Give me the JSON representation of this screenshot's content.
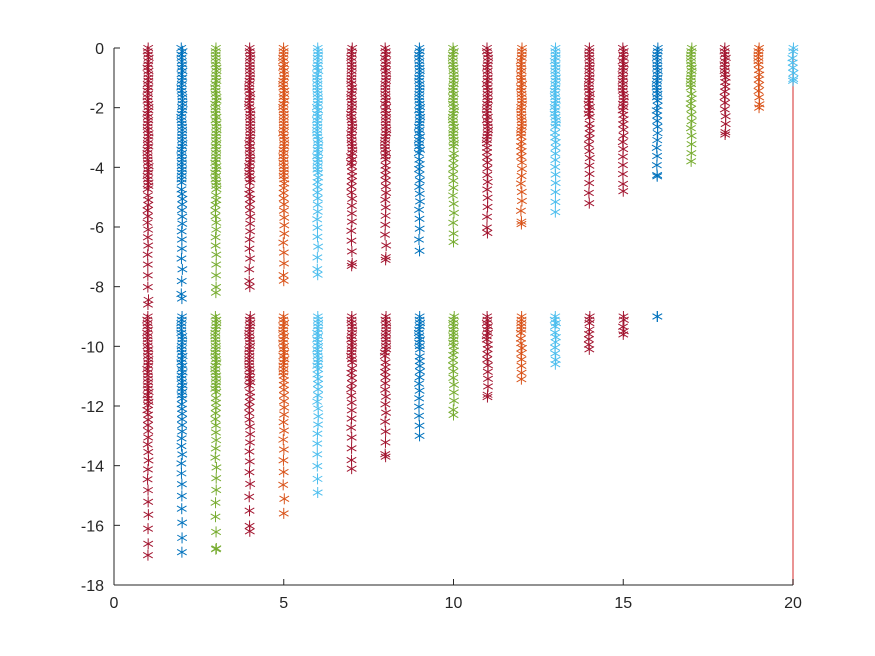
{
  "chart_data": {
    "type": "scatter",
    "title": "",
    "xlabel": "",
    "ylabel": "",
    "xlim": [
      0,
      20
    ],
    "ylim": [
      -18,
      0
    ],
    "xticks": [
      0,
      5,
      10,
      15,
      20
    ],
    "yticks": [
      0,
      -2,
      -4,
      -6,
      -8,
      -10,
      -12,
      -14,
      -16,
      -18
    ],
    "xtick_labels": [
      "0",
      "5",
      "10",
      "15",
      "20"
    ],
    "ytick_labels": [
      "0",
      "-2",
      "-4",
      "-6",
      "-8",
      "-10",
      "-12",
      "-14",
      "-16",
      "-18"
    ],
    "grid": false,
    "legend": "none",
    "marker": "asterisk",
    "palette": [
      "#a2142f",
      "#0072bd",
      "#77ac30",
      "#d95319",
      "#4dbeee"
    ],
    "vertical_line": {
      "x": 20,
      "y_from": -18,
      "y_to": 0,
      "color": "#e06666"
    },
    "series": [
      {
        "x": 1,
        "color": "#a2142f",
        "clusters": [
          {
            "top": 0,
            "dense_to": -4.8,
            "sparse_to": -8.6
          },
          {
            "top": -9.0,
            "dense_to": -12.0,
            "sparse_to": -17.0
          }
        ]
      },
      {
        "x": 2,
        "color": "#0072bd",
        "clusters": [
          {
            "top": 0,
            "dense_to": -4.6,
            "sparse_to": -8.4
          },
          {
            "top": -9.0,
            "dense_to": -11.8,
            "sparse_to": -16.9
          }
        ]
      },
      {
        "x": 3,
        "color": "#77ac30",
        "clusters": [
          {
            "top": 0,
            "dense_to": -4.8,
            "sparse_to": -8.2
          },
          {
            "top": -9.0,
            "dense_to": -11.6,
            "sparse_to": -16.8
          }
        ]
      },
      {
        "x": 4,
        "color": "#a2142f",
        "clusters": [
          {
            "top": 0,
            "dense_to": -4.6,
            "sparse_to": -8.0
          },
          {
            "top": -9.0,
            "dense_to": -11.4,
            "sparse_to": -16.2
          }
        ]
      },
      {
        "x": 5,
        "color": "#d95319",
        "clusters": [
          {
            "top": 0,
            "dense_to": -4.4,
            "sparse_to": -7.8
          },
          {
            "top": -9.0,
            "dense_to": -11.0,
            "sparse_to": -15.6
          }
        ]
      },
      {
        "x": 6,
        "color": "#4dbeee",
        "clusters": [
          {
            "top": 0,
            "dense_to": -4.2,
            "sparse_to": -7.6
          },
          {
            "top": -9.0,
            "dense_to": -10.8,
            "sparse_to": -14.9
          }
        ]
      },
      {
        "x": 7,
        "color": "#a2142f",
        "clusters": [
          {
            "top": 0,
            "dense_to": -4.0,
            "sparse_to": -7.3
          },
          {
            "top": -9.0,
            "dense_to": -10.6,
            "sparse_to": -14.1
          }
        ]
      },
      {
        "x": 8,
        "color": "#a2142f",
        "clusters": [
          {
            "top": 0,
            "dense_to": -3.8,
            "sparse_to": -7.1
          },
          {
            "top": -9.0,
            "dense_to": -10.4,
            "sparse_to": -13.7
          }
        ]
      },
      {
        "x": 9,
        "color": "#0072bd",
        "clusters": [
          {
            "top": 0,
            "dense_to": -3.6,
            "sparse_to": -6.8
          },
          {
            "top": -9.0,
            "dense_to": -10.2,
            "sparse_to": -13.0
          }
        ]
      },
      {
        "x": 10,
        "color": "#77ac30",
        "clusters": [
          {
            "top": 0,
            "dense_to": -3.4,
            "sparse_to": -6.5
          },
          {
            "top": -9.0,
            "dense_to": -10.0,
            "sparse_to": -12.3
          }
        ]
      },
      {
        "x": 11,
        "color": "#a2142f",
        "clusters": [
          {
            "top": 0,
            "dense_to": -3.2,
            "sparse_to": -6.2
          },
          {
            "top": -9.0,
            "dense_to": -9.8,
            "sparse_to": -11.7
          }
        ]
      },
      {
        "x": 12,
        "color": "#d95319",
        "clusters": [
          {
            "top": 0,
            "dense_to": -3.0,
            "sparse_to": -5.9
          },
          {
            "top": -9.0,
            "dense_to": -9.6,
            "sparse_to": -11.1
          }
        ]
      },
      {
        "x": 13,
        "color": "#4dbeee",
        "clusters": [
          {
            "top": 0,
            "dense_to": -2.7,
            "sparse_to": -5.5
          },
          {
            "top": -9.0,
            "dense_to": -9.4,
            "sparse_to": -10.6
          }
        ]
      },
      {
        "x": 14,
        "color": "#a2142f",
        "clusters": [
          {
            "top": 0,
            "dense_to": -2.4,
            "sparse_to": -5.2
          },
          {
            "top": -9.0,
            "dense_to": -9.3,
            "sparse_to": -10.1
          }
        ]
      },
      {
        "x": 15,
        "color": "#a2142f",
        "clusters": [
          {
            "top": 0,
            "dense_to": -2.1,
            "sparse_to": -4.8
          },
          {
            "top": -9.0,
            "dense_to": -9.2,
            "sparse_to": -9.6
          }
        ]
      },
      {
        "x": 16,
        "color": "#0072bd",
        "clusters": [
          {
            "top": 0,
            "dense_to": -1.8,
            "sparse_to": -4.3
          },
          {
            "top": -9.0,
            "dense_to": -9.0,
            "sparse_to": -9.0
          }
        ]
      },
      {
        "x": 17,
        "color": "#77ac30",
        "clusters": [
          {
            "top": 0,
            "dense_to": -1.4,
            "sparse_to": -3.8
          }
        ]
      },
      {
        "x": 18,
        "color": "#a2142f",
        "clusters": [
          {
            "top": 0,
            "dense_to": -1.0,
            "sparse_to": -2.9
          }
        ]
      },
      {
        "x": 19,
        "color": "#d95319",
        "clusters": [
          {
            "top": 0,
            "dense_to": -0.6,
            "sparse_to": -2.0
          }
        ]
      },
      {
        "x": 20,
        "color": "#4dbeee",
        "clusters": [
          {
            "top": 0,
            "dense_to": -0.2,
            "sparse_to": -1.1
          }
        ]
      }
    ]
  }
}
